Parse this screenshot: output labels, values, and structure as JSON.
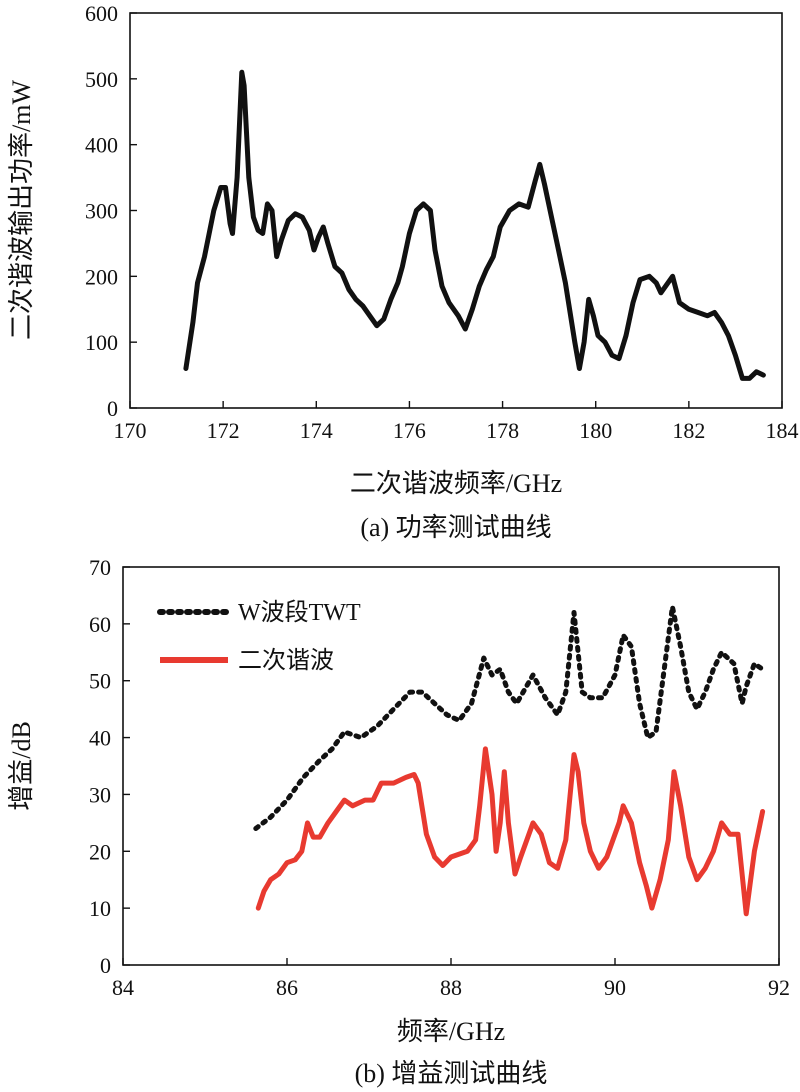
{
  "chart_data": [
    {
      "type": "line",
      "caption": "(a) 功率测试曲线",
      "xlabel": "二次谐波频率/GHz",
      "ylabel": "二次谐波输出功率/mW",
      "xlim": [
        170,
        184
      ],
      "ylim": [
        0,
        600
      ],
      "xticks": [
        170,
        172,
        174,
        176,
        178,
        180,
        182,
        184
      ],
      "yticks": [
        0,
        100,
        200,
        300,
        400,
        500,
        600
      ],
      "grid": false,
      "series": [
        {
          "name": "",
          "color": "#111111",
          "style": "solid",
          "points": [
            [
              171.2,
              60
            ],
            [
              171.35,
              130
            ],
            [
              171.45,
              190
            ],
            [
              171.6,
              230
            ],
            [
              171.8,
              300
            ],
            [
              171.95,
              335
            ],
            [
              172.05,
              335
            ],
            [
              172.15,
              280
            ],
            [
              172.2,
              265
            ],
            [
              172.3,
              350
            ],
            [
              172.4,
              510
            ],
            [
              172.45,
              490
            ],
            [
              172.55,
              350
            ],
            [
              172.65,
              290
            ],
            [
              172.75,
              270
            ],
            [
              172.85,
              265
            ],
            [
              172.95,
              310
            ],
            [
              173.05,
              300
            ],
            [
              173.15,
              230
            ],
            [
              173.25,
              255
            ],
            [
              173.4,
              285
            ],
            [
              173.55,
              295
            ],
            [
              173.7,
              290
            ],
            [
              173.85,
              270
            ],
            [
              173.95,
              240
            ],
            [
              174.05,
              260
            ],
            [
              174.15,
              275
            ],
            [
              174.25,
              250
            ],
            [
              174.4,
              215
            ],
            [
              174.55,
              205
            ],
            [
              174.7,
              180
            ],
            [
              174.85,
              165
            ],
            [
              175.0,
              155
            ],
            [
              175.15,
              140
            ],
            [
              175.3,
              125
            ],
            [
              175.45,
              135
            ],
            [
              175.6,
              165
            ],
            [
              175.75,
              190
            ],
            [
              175.85,
              215
            ],
            [
              176.0,
              265
            ],
            [
              176.15,
              300
            ],
            [
              176.3,
              310
            ],
            [
              176.45,
              300
            ],
            [
              176.55,
              240
            ],
            [
              176.7,
              185
            ],
            [
              176.85,
              160
            ],
            [
              177.05,
              140
            ],
            [
              177.2,
              120
            ],
            [
              177.35,
              150
            ],
            [
              177.5,
              185
            ],
            [
              177.65,
              210
            ],
            [
              177.8,
              230
            ],
            [
              177.95,
              275
            ],
            [
              178.15,
              300
            ],
            [
              178.35,
              310
            ],
            [
              178.55,
              305
            ],
            [
              178.7,
              345
            ],
            [
              178.8,
              370
            ],
            [
              178.9,
              340
            ],
            [
              179.05,
              290
            ],
            [
              179.2,
              240
            ],
            [
              179.35,
              190
            ],
            [
              179.55,
              100
            ],
            [
              179.65,
              60
            ],
            [
              179.75,
              100
            ],
            [
              179.85,
              165
            ],
            [
              179.95,
              140
            ],
            [
              180.05,
              110
            ],
            [
              180.2,
              100
            ],
            [
              180.35,
              80
            ],
            [
              180.5,
              75
            ],
            [
              180.65,
              110
            ],
            [
              180.8,
              160
            ],
            [
              180.95,
              195
            ],
            [
              181.15,
              200
            ],
            [
              181.3,
              190
            ],
            [
              181.4,
              175
            ],
            [
              181.55,
              190
            ],
            [
              181.65,
              200
            ],
            [
              181.8,
              160
            ],
            [
              182.0,
              150
            ],
            [
              182.2,
              145
            ],
            [
              182.4,
              140
            ],
            [
              182.55,
              145
            ],
            [
              182.7,
              130
            ],
            [
              182.85,
              110
            ],
            [
              183.0,
              80
            ],
            [
              183.15,
              45
            ],
            [
              183.3,
              45
            ],
            [
              183.45,
              55
            ],
            [
              183.6,
              50
            ]
          ]
        }
      ]
    },
    {
      "type": "line",
      "caption": "(b) 增益测试曲线",
      "xlabel": "频率/GHz",
      "ylabel": "增益/dB",
      "xlim": [
        84,
        92
      ],
      "ylim": [
        0,
        70
      ],
      "xticks": [
        84,
        86,
        88,
        90,
        92
      ],
      "yticks": [
        0,
        10,
        20,
        30,
        40,
        50,
        60,
        70
      ],
      "grid": false,
      "legend_position": "top-left",
      "series": [
        {
          "name": "W波段TWT",
          "color": "#111111",
          "style": "dotted",
          "points": [
            [
              85.62,
              24
            ],
            [
              85.8,
              26
            ],
            [
              86.0,
              29
            ],
            [
              86.2,
              33
            ],
            [
              86.4,
              36
            ],
            [
              86.55,
              38
            ],
            [
              86.7,
              41
            ],
            [
              86.9,
              40
            ],
            [
              87.1,
              42
            ],
            [
              87.3,
              45
            ],
            [
              87.5,
              48
            ],
            [
              87.65,
              48
            ],
            [
              87.8,
              46
            ],
            [
              87.95,
              44
            ],
            [
              88.1,
              43
            ],
            [
              88.25,
              46
            ],
            [
              88.4,
              54
            ],
            [
              88.5,
              51
            ],
            [
              88.6,
              52
            ],
            [
              88.7,
              48
            ],
            [
              88.8,
              46
            ],
            [
              89.0,
              51
            ],
            [
              89.15,
              47
            ],
            [
              89.3,
              44
            ],
            [
              89.4,
              48
            ],
            [
              89.5,
              62
            ],
            [
              89.6,
              48
            ],
            [
              89.7,
              47
            ],
            [
              89.85,
              47
            ],
            [
              90.0,
              51
            ],
            [
              90.1,
              58
            ],
            [
              90.2,
              56
            ],
            [
              90.3,
              46
            ],
            [
              90.4,
              40
            ],
            [
              90.5,
              41
            ],
            [
              90.6,
              52
            ],
            [
              90.7,
              63
            ],
            [
              90.8,
              56
            ],
            [
              90.9,
              48
            ],
            [
              91.0,
              45
            ],
            [
              91.1,
              48
            ],
            [
              91.2,
              52
            ],
            [
              91.3,
              55
            ],
            [
              91.45,
              53
            ],
            [
              91.55,
              46
            ],
            [
              91.6,
              49
            ],
            [
              91.7,
              53
            ],
            [
              91.8,
              52
            ]
          ]
        },
        {
          "name": "二次谐波",
          "color": "#e83a30",
          "style": "solid",
          "points": [
            [
              85.65,
              10
            ],
            [
              85.72,
              13
            ],
            [
              85.8,
              15
            ],
            [
              85.9,
              16
            ],
            [
              86.0,
              18
            ],
            [
              86.1,
              18.5
            ],
            [
              86.18,
              20
            ],
            [
              86.25,
              25
            ],
            [
              86.32,
              22.5
            ],
            [
              86.4,
              22.5
            ],
            [
              86.5,
              25
            ],
            [
              86.6,
              27
            ],
            [
              86.7,
              29
            ],
            [
              86.8,
              28
            ],
            [
              86.95,
              29
            ],
            [
              87.05,
              29
            ],
            [
              87.15,
              32
            ],
            [
              87.3,
              32
            ],
            [
              87.45,
              33
            ],
            [
              87.55,
              33.5
            ],
            [
              87.6,
              32
            ],
            [
              87.7,
              23
            ],
            [
              87.8,
              19
            ],
            [
              87.9,
              17.5
            ],
            [
              88.0,
              19
            ],
            [
              88.1,
              19.5
            ],
            [
              88.2,
              20
            ],
            [
              88.3,
              22
            ],
            [
              88.35,
              28
            ],
            [
              88.42,
              38
            ],
            [
              88.5,
              30
            ],
            [
              88.55,
              20
            ],
            [
              88.6,
              25
            ],
            [
              88.65,
              34
            ],
            [
              88.7,
              25
            ],
            [
              88.78,
              16
            ],
            [
              88.85,
              19
            ],
            [
              89.0,
              25
            ],
            [
              89.1,
              23
            ],
            [
              89.2,
              18
            ],
            [
              89.3,
              17
            ],
            [
              89.4,
              22
            ],
            [
              89.5,
              37
            ],
            [
              89.55,
              34
            ],
            [
              89.62,
              25
            ],
            [
              89.7,
              20
            ],
            [
              89.8,
              17
            ],
            [
              89.9,
              19
            ],
            [
              90.05,
              25
            ],
            [
              90.1,
              28
            ],
            [
              90.2,
              25
            ],
            [
              90.3,
              18
            ],
            [
              90.38,
              14
            ],
            [
              90.45,
              10
            ],
            [
              90.55,
              15
            ],
            [
              90.65,
              22
            ],
            [
              90.72,
              34
            ],
            [
              90.8,
              28
            ],
            [
              90.9,
              19
            ],
            [
              91.0,
              15
            ],
            [
              91.1,
              17
            ],
            [
              91.2,
              20
            ],
            [
              91.3,
              25
            ],
            [
              91.4,
              23
            ],
            [
              91.5,
              23
            ],
            [
              91.6,
              9
            ],
            [
              91.7,
              20
            ],
            [
              91.8,
              27
            ]
          ]
        }
      ]
    }
  ]
}
